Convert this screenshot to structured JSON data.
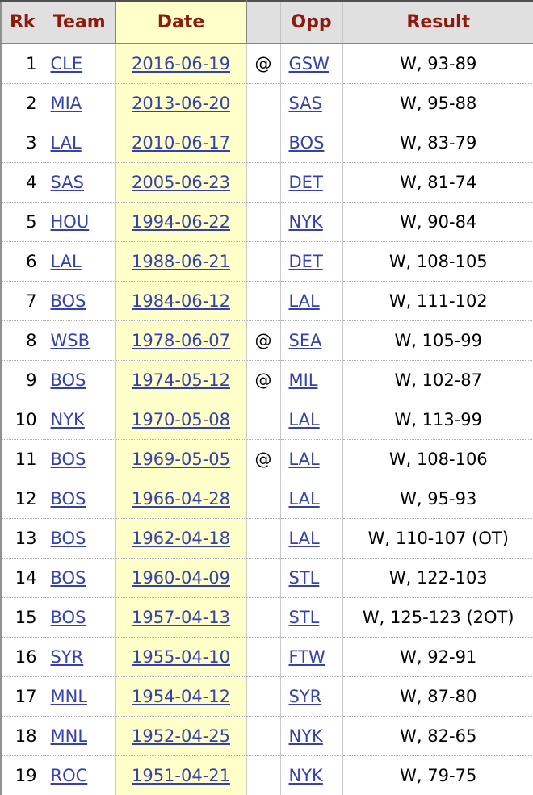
{
  "table": {
    "title": "game7-finals-wins-table",
    "columns": [
      {
        "key": "rk",
        "label": "Rk",
        "link": false
      },
      {
        "key": "team",
        "label": "Team",
        "link": true
      },
      {
        "key": "date",
        "label": "Date",
        "link": true,
        "sorted": true
      },
      {
        "key": "at",
        "label": "",
        "link": false
      },
      {
        "key": "opp",
        "label": "Opp",
        "link": true
      },
      {
        "key": "result",
        "label": "Result",
        "link": false
      }
    ],
    "rows": [
      {
        "rk": "1",
        "team": "CLE",
        "date": "2016-06-19",
        "at": "@",
        "opp": "GSW",
        "result": "W, 93-89"
      },
      {
        "rk": "2",
        "team": "MIA",
        "date": "2013-06-20",
        "at": "",
        "opp": "SAS",
        "result": "W, 95-88"
      },
      {
        "rk": "3",
        "team": "LAL",
        "date": "2010-06-17",
        "at": "",
        "opp": "BOS",
        "result": "W, 83-79"
      },
      {
        "rk": "4",
        "team": "SAS",
        "date": "2005-06-23",
        "at": "",
        "opp": "DET",
        "result": "W, 81-74"
      },
      {
        "rk": "5",
        "team": "HOU",
        "date": "1994-06-22",
        "at": "",
        "opp": "NYK",
        "result": "W, 90-84"
      },
      {
        "rk": "6",
        "team": "LAL",
        "date": "1988-06-21",
        "at": "",
        "opp": "DET",
        "result": "W, 108-105"
      },
      {
        "rk": "7",
        "team": "BOS",
        "date": "1984-06-12",
        "at": "",
        "opp": "LAL",
        "result": "W, 111-102"
      },
      {
        "rk": "8",
        "team": "WSB",
        "date": "1978-06-07",
        "at": "@",
        "opp": "SEA",
        "result": "W, 105-99"
      },
      {
        "rk": "9",
        "team": "BOS",
        "date": "1974-05-12",
        "at": "@",
        "opp": "MIL",
        "result": "W, 102-87"
      },
      {
        "rk": "10",
        "team": "NYK",
        "date": "1970-05-08",
        "at": "",
        "opp": "LAL",
        "result": "W, 113-99"
      },
      {
        "rk": "11",
        "team": "BOS",
        "date": "1969-05-05",
        "at": "@",
        "opp": "LAL",
        "result": "W, 108-106"
      },
      {
        "rk": "12",
        "team": "BOS",
        "date": "1966-04-28",
        "at": "",
        "opp": "LAL",
        "result": "W, 95-93"
      },
      {
        "rk": "13",
        "team": "BOS",
        "date": "1962-04-18",
        "at": "",
        "opp": "LAL",
        "result": "W, 110-107 (OT)"
      },
      {
        "rk": "14",
        "team": "BOS",
        "date": "1960-04-09",
        "at": "",
        "opp": "STL",
        "result": "W, 122-103"
      },
      {
        "rk": "15",
        "team": "BOS",
        "date": "1957-04-13",
        "at": "",
        "opp": "STL",
        "result": "W, 125-123 (2OT)"
      },
      {
        "rk": "16",
        "team": "SYR",
        "date": "1955-04-10",
        "at": "",
        "opp": "FTW",
        "result": "W, 92-91"
      },
      {
        "rk": "17",
        "team": "MNL",
        "date": "1954-04-12",
        "at": "",
        "opp": "SYR",
        "result": "W, 87-80"
      },
      {
        "rk": "18",
        "team": "MNL",
        "date": "1952-04-25",
        "at": "",
        "opp": "NYK",
        "result": "W, 82-65"
      },
      {
        "rk": "19",
        "team": "ROC",
        "date": "1951-04-21",
        "at": "",
        "opp": "NYK",
        "result": "W, 79-75"
      }
    ]
  },
  "colors": {
    "header_bg": "#e0e0e0",
    "sorted_column_highlight": "#ffffc9",
    "header_text": "#8e1a0e",
    "link": "#3641ab",
    "body_text": "#000000"
  }
}
